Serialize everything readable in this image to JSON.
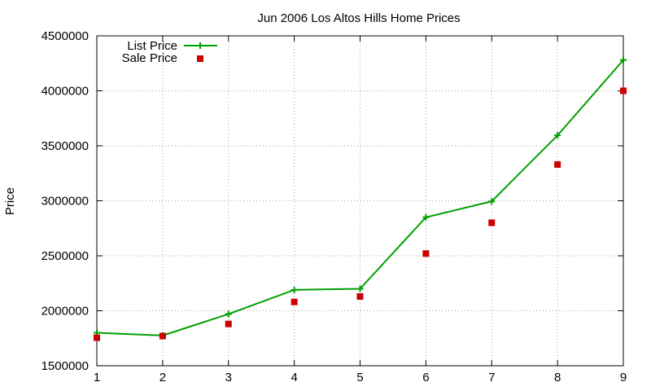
{
  "chart_data": {
    "type": "line",
    "title": "Jun 2006 Los Altos Hills Home Prices",
    "xlabel": "",
    "ylabel": "Price",
    "x": [
      1,
      2,
      3,
      4,
      5,
      6,
      7,
      8,
      9
    ],
    "xlim": [
      1,
      9
    ],
    "ylim": [
      1500000,
      4500000
    ],
    "xticks": [
      "1",
      "2",
      "3",
      "4",
      "5",
      "6",
      "7",
      "8",
      "9"
    ],
    "yticks": [
      1500000,
      2000000,
      2500000,
      3000000,
      3500000,
      4000000,
      4500000
    ],
    "ytick_labels": [
      "1500000",
      "2000000",
      "2500000",
      "3000000",
      "3500000",
      "4000000",
      "4500000"
    ],
    "grid": true,
    "legend_position": "top-left",
    "series": [
      {
        "name": "List Price",
        "style": "line with plus markers",
        "color": "#00a000",
        "values": [
          1800000,
          1775000,
          1970000,
          2190000,
          2200000,
          2850000,
          2995000,
          3595000,
          4280000
        ]
      },
      {
        "name": "Sale Price",
        "style": "square markers",
        "color": "#cc0000",
        "values": [
          1755000,
          1770000,
          1880000,
          2080000,
          2130000,
          2520000,
          2800000,
          3330000,
          4000000
        ]
      }
    ]
  }
}
